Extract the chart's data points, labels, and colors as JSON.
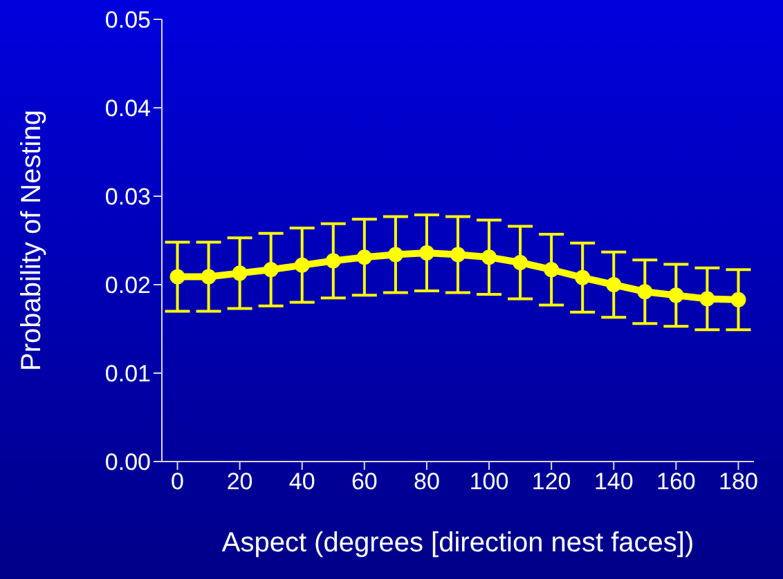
{
  "chart_data": {
    "type": "line",
    "xlabel": "Aspect (degrees [direction nest faces])",
    "ylabel": "Probability of Nesting",
    "x": [
      0,
      10,
      20,
      30,
      40,
      50,
      60,
      70,
      80,
      90,
      100,
      110,
      120,
      130,
      140,
      150,
      160,
      170,
      180
    ],
    "series": [
      {
        "color": "#ffff00",
        "values": [
          0.0209,
          0.0209,
          0.0213,
          0.0217,
          0.0222,
          0.0227,
          0.0231,
          0.0234,
          0.0236,
          0.0234,
          0.0231,
          0.0225,
          0.0217,
          0.0208,
          0.02,
          0.0192,
          0.0188,
          0.0184,
          0.0183
        ],
        "errors": [
          0.0039,
          0.0039,
          0.004,
          0.0041,
          0.0042,
          0.0042,
          0.0043,
          0.0043,
          0.0043,
          0.0043,
          0.0042,
          0.0041,
          0.004,
          0.0039,
          0.0037,
          0.0036,
          0.0035,
          0.0035,
          0.0034
        ]
      }
    ],
    "xlim": [
      -5,
      185
    ],
    "xticks": [
      0,
      20,
      40,
      60,
      80,
      100,
      120,
      140,
      160,
      180
    ],
    "ylim": [
      0,
      0.05
    ],
    "yticks": [
      {
        "value": 0,
        "label": "0.00"
      },
      {
        "value": 0.01,
        "label": "0.01"
      },
      {
        "value": 0.02,
        "label": "0.02"
      },
      {
        "value": 0.03,
        "label": "0.03"
      },
      {
        "value": 0.04,
        "label": "0.04"
      },
      {
        "value": 0.05,
        "label": "0.05"
      }
    ],
    "grid": false,
    "legend": false,
    "marker": "circle",
    "line_style": "solid"
  }
}
